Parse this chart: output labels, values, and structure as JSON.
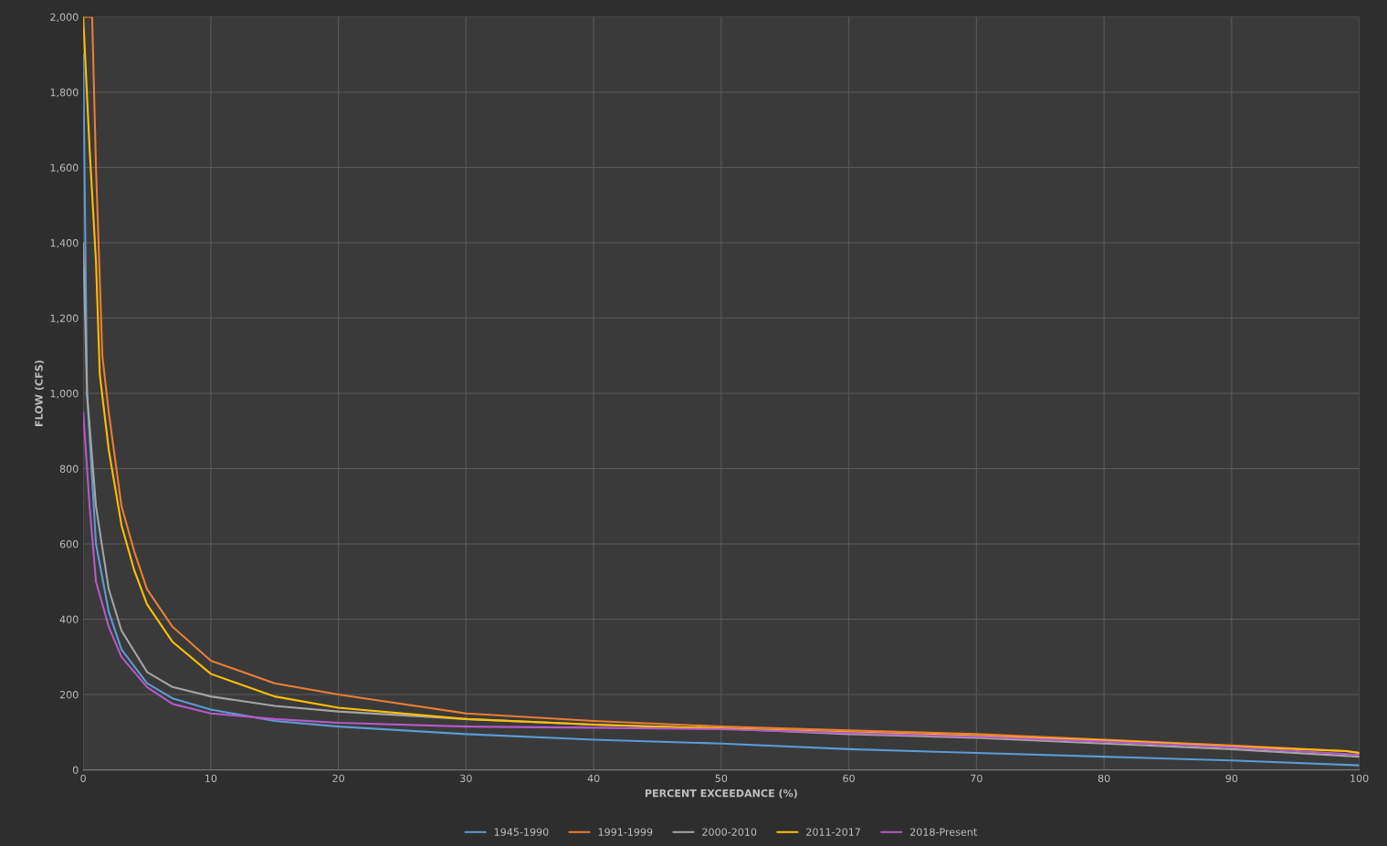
{
  "chart_data": {
    "type": "line",
    "xlabel": "PERCENT EXCEEDANCE (%)",
    "ylabel": "FLOW (CFS)",
    "xlim": [
      0,
      100
    ],
    "xticks": [
      0,
      10,
      20,
      30,
      40,
      50,
      60,
      70,
      80,
      90,
      100
    ],
    "ylim": [
      0,
      2000
    ],
    "yticks": [
      {
        "value": 0,
        "label": "0"
      },
      {
        "value": 200,
        "label": "200"
      },
      {
        "value": 400,
        "label": "400"
      },
      {
        "value": 600,
        "label": "600"
      },
      {
        "value": 800,
        "label": "800"
      },
      {
        "value": 1000,
        "label": "1,000"
      },
      {
        "value": 1200,
        "label": "1,200"
      },
      {
        "value": 1400,
        "label": "1,400"
      },
      {
        "value": 1600,
        "label": "1,600"
      },
      {
        "value": 1800,
        "label": "1,800"
      },
      {
        "value": 2000,
        "label": "2,000"
      }
    ],
    "grid": true,
    "legend": "bottom",
    "marker": "none",
    "line_style": "solid",
    "series": [
      {
        "name": "1945-1990",
        "color": "#5b9bd5",
        "x": [
          0,
          0.3,
          1,
          2,
          3,
          5,
          7,
          10,
          15,
          20,
          30,
          40,
          50,
          60,
          70,
          80,
          90,
          100
        ],
        "values": [
          1900,
          1000,
          600,
          420,
          320,
          230,
          190,
          160,
          130,
          115,
          95,
          80,
          70,
          55,
          45,
          35,
          25,
          12
        ]
      },
      {
        "name": "1991-1999",
        "color": "#ed7d31",
        "x": [
          0,
          0.7,
          1,
          1.5,
          2,
          3,
          4,
          5,
          7,
          10,
          15,
          20,
          30,
          40,
          50,
          60,
          70,
          80,
          90,
          99,
          100
        ],
        "values": [
          2000,
          2000,
          1600,
          1100,
          950,
          700,
          580,
          480,
          380,
          290,
          230,
          200,
          150,
          130,
          115,
          105,
          95,
          80,
          65,
          50,
          45
        ]
      },
      {
        "name": "2000-2010",
        "color": "#a5a5a5",
        "x": [
          0,
          0.3,
          1,
          2,
          3,
          5,
          7,
          10,
          15,
          20,
          30,
          40,
          50,
          60,
          70,
          80,
          90,
          100
        ],
        "values": [
          1400,
          1000,
          700,
          480,
          370,
          260,
          220,
          195,
          170,
          155,
          135,
          120,
          110,
          95,
          85,
          70,
          55,
          35
        ]
      },
      {
        "name": "2011-2017",
        "color": "#ffc000",
        "x": [
          0,
          0.5,
          1,
          1.3,
          2,
          3,
          4,
          5,
          7,
          10,
          15,
          20,
          30,
          40,
          50,
          60,
          70,
          80,
          90,
          99,
          100
        ],
        "values": [
          2000,
          1650,
          1350,
          1050,
          850,
          650,
          530,
          440,
          340,
          255,
          195,
          165,
          135,
          120,
          110,
          100,
          90,
          78,
          62,
          50,
          45
        ]
      },
      {
        "name": "2018-Present",
        "color": "#b659c8",
        "x": [
          0,
          0.5,
          1,
          2,
          3,
          5,
          7,
          10,
          15,
          20,
          30,
          40,
          50,
          60,
          70,
          80,
          90,
          100
        ],
        "values": [
          950,
          700,
          500,
          380,
          300,
          220,
          175,
          150,
          135,
          125,
          115,
          112,
          108,
          98,
          88,
          75,
          60,
          40
        ]
      }
    ]
  }
}
